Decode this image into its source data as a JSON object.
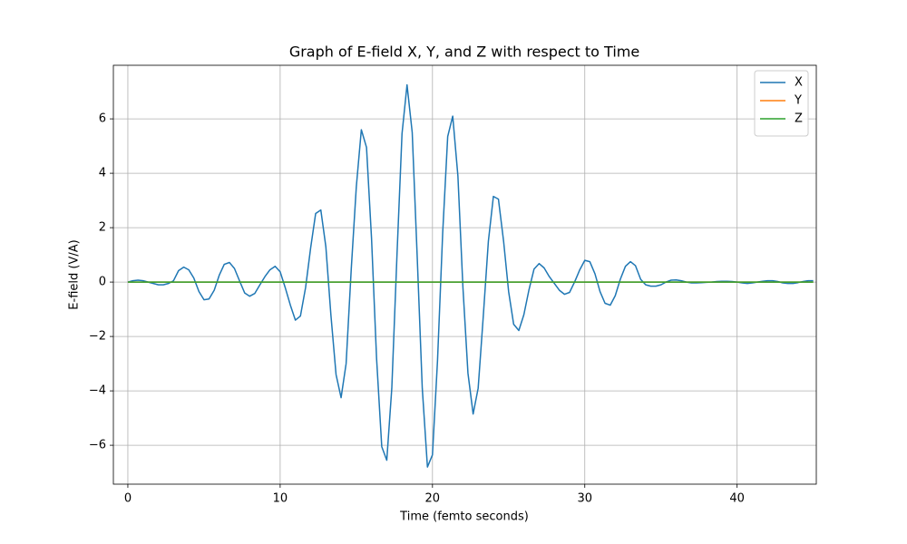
{
  "chart_data": {
    "type": "line",
    "title": "Graph of E-field X, Y, and Z with respect to Time",
    "xlabel": "Time (femto seconds)",
    "ylabel": "E-field (V/A)",
    "xlim": [
      -0.95,
      45.2
    ],
    "ylim": [
      -7.43,
      7.97
    ],
    "xticks": [
      0,
      10,
      20,
      30,
      40
    ],
    "yticks": [
      {
        "value": -6,
        "label": "−6"
      },
      {
        "value": -4,
        "label": "−4"
      },
      {
        "value": -2,
        "label": "−2"
      },
      0,
      2,
      4,
      6
    ],
    "grid": true,
    "legend": "upper right",
    "x": [
      0,
      0.33,
      0.67,
      1,
      1.33,
      1.67,
      2,
      2.33,
      2.67,
      3,
      3.33,
      3.67,
      4,
      4.33,
      4.67,
      5,
      5.33,
      5.67,
      6,
      6.33,
      6.67,
      7,
      7.33,
      7.67,
      8,
      8.33,
      8.67,
      9,
      9.33,
      9.67,
      10,
      10.33,
      10.67,
      11,
      11.33,
      11.67,
      12,
      12.33,
      12.67,
      13,
      13.33,
      13.67,
      14,
      14.33,
      14.67,
      15,
      15.33,
      15.67,
      16,
      16.33,
      16.67,
      17,
      17.33,
      17.67,
      18,
      18.33,
      18.67,
      19,
      19.33,
      19.67,
      20,
      20.33,
      20.67,
      21,
      21.33,
      21.67,
      22,
      22.33,
      22.67,
      23,
      23.33,
      23.67,
      24,
      24.33,
      24.67,
      25,
      25.33,
      25.67,
      26,
      26.33,
      26.67,
      27,
      27.33,
      27.67,
      28,
      28.33,
      28.67,
      29,
      29.33,
      29.67,
      30,
      30.33,
      30.67,
      31,
      31.33,
      31.67,
      32,
      32.33,
      32.67,
      33,
      33.33,
      33.67,
      34,
      34.33,
      34.67,
      35,
      35.33,
      35.67,
      36,
      36.33,
      36.67,
      37,
      37.33,
      37.67,
      38,
      38.33,
      38.67,
      39,
      39.33,
      39.67,
      40,
      40.33,
      40.67,
      41,
      41.33,
      41.67,
      42,
      42.33,
      42.67,
      43,
      43.33,
      43.67,
      44,
      44.33,
      44.67,
      45
    ],
    "series": [
      {
        "name": "X",
        "color": "#1f77b4",
        "values": [
          0,
          0.05,
          0.07,
          0.05,
          0,
          -0.05,
          -0.1,
          -0.1,
          -0.05,
          0.05,
          0.42,
          0.55,
          0.45,
          0.15,
          -0.35,
          -0.65,
          -0.62,
          -0.3,
          0.25,
          0.65,
          0.72,
          0.5,
          0.05,
          -0.4,
          -0.52,
          -0.42,
          -0.1,
          0.2,
          0.45,
          0.58,
          0.38,
          -0.2,
          -0.85,
          -1.4,
          -1.25,
          -0.2,
          1.25,
          2.52,
          2.65,
          1.3,
          -1.2,
          -3.4,
          -4.25,
          -3,
          0.5,
          3.5,
          5.6,
          4.95,
          1.6,
          -2.8,
          -6.05,
          -6.55,
          -3.9,
          1,
          5.45,
          7.25,
          5.5,
          0.9,
          -3.9,
          -6.8,
          -6.35,
          -2.9,
          1.8,
          5.35,
          6.1,
          3.9,
          -0.2,
          -3.35,
          -4.85,
          -3.9,
          -1.3,
          1.5,
          3.15,
          3.05,
          1.5,
          -0.35,
          -1.55,
          -1.78,
          -1.2,
          -0.3,
          0.48,
          0.68,
          0.52,
          0.2,
          -0.05,
          -0.3,
          -0.45,
          -0.38,
          0,
          0.45,
          0.8,
          0.75,
          0.3,
          -0.35,
          -0.78,
          -0.85,
          -0.5,
          0.1,
          0.58,
          0.75,
          0.6,
          0.1,
          -0.1,
          -0.15,
          -0.15,
          -0.1,
          0,
          0.07,
          0.08,
          0.05,
          0,
          -0.03,
          -0.03,
          -0.02,
          -0.01,
          0,
          0.02,
          0.03,
          0.03,
          0.02,
          0,
          -0.03,
          -0.05,
          -0.03,
          0,
          0.03,
          0.05,
          0.05,
          0.02,
          -0.03,
          -0.05,
          -0.05,
          -0.02,
          0.02,
          0.05,
          0.05
        ]
      },
      {
        "name": "Y",
        "color": "#ff7f0e",
        "values": [
          0,
          0,
          0,
          0,
          0,
          0,
          0,
          0,
          0,
          0,
          0,
          0,
          0,
          0,
          0,
          0,
          0,
          0,
          0,
          0,
          0,
          0,
          0,
          0,
          0,
          0,
          0,
          0,
          0,
          0,
          0,
          0,
          0,
          0,
          0,
          0,
          0,
          0,
          0,
          0,
          0,
          0,
          0,
          0,
          0,
          0,
          0,
          0,
          0,
          0,
          0,
          0,
          0,
          0,
          0,
          0,
          0,
          0,
          0,
          0,
          0,
          0,
          0,
          0,
          0,
          0,
          0,
          0,
          0,
          0,
          0,
          0,
          0,
          0,
          0,
          0,
          0,
          0,
          0,
          0,
          0,
          0,
          0,
          0,
          0,
          0,
          0,
          0,
          0,
          0,
          0,
          0,
          0,
          0,
          0,
          0,
          0,
          0,
          0,
          0,
          0,
          0,
          0,
          0,
          0,
          0,
          0,
          0,
          0,
          0,
          0,
          0,
          0,
          0,
          0,
          0,
          0,
          0,
          0,
          0,
          0,
          0,
          0,
          0,
          0,
          0,
          0,
          0,
          0,
          0,
          0,
          0,
          0,
          0,
          0,
          0
        ]
      },
      {
        "name": "Z",
        "color": "#2ca02c",
        "values": [
          0,
          0,
          0,
          0,
          0,
          0,
          0,
          0,
          0,
          0,
          0,
          0,
          0,
          0,
          0,
          0,
          0,
          0,
          0,
          0,
          0,
          0,
          0,
          0,
          0,
          0,
          0,
          0,
          0,
          0,
          0,
          0,
          0,
          0,
          0,
          0,
          0,
          0,
          0,
          0,
          0,
          0,
          0,
          0,
          0,
          0,
          0,
          0,
          0,
          0,
          0,
          0,
          0,
          0,
          0,
          0,
          0,
          0,
          0,
          0,
          0,
          0,
          0,
          0,
          0,
          0,
          0,
          0,
          0,
          0,
          0,
          0,
          0,
          0,
          0,
          0,
          0,
          0,
          0,
          0,
          0,
          0,
          0,
          0,
          0,
          0,
          0,
          0,
          0,
          0,
          0,
          0,
          0,
          0,
          0,
          0,
          0,
          0,
          0,
          0,
          0,
          0,
          0,
          0,
          0,
          0,
          0,
          0,
          0,
          0,
          0,
          0,
          0,
          0,
          0,
          0,
          0,
          0,
          0,
          0,
          0,
          0,
          0,
          0,
          0,
          0,
          0,
          0,
          0,
          0,
          0,
          0,
          0,
          0,
          0,
          0
        ]
      }
    ]
  }
}
